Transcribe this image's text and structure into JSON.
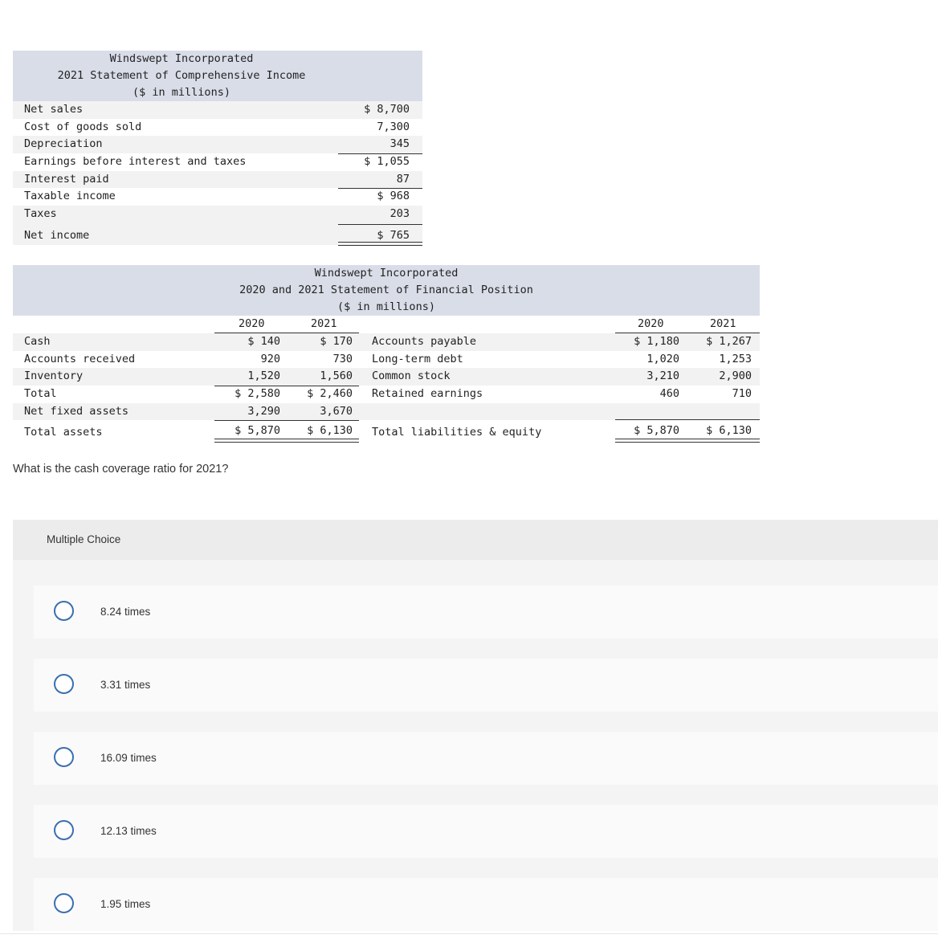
{
  "income": {
    "title1": "Windswept Incorporated",
    "title2": "2021 Statement of Comprehensive Income",
    "title3": "($ in millions)",
    "rows": [
      {
        "label": "Net sales",
        "value": "$ 8,700"
      },
      {
        "label": "Cost of goods sold",
        "value": "7,300"
      },
      {
        "label": "Depreciation",
        "value": "345"
      },
      {
        "label": "Earnings before interest and taxes",
        "value": "$ 1,055"
      },
      {
        "label": "Interest paid",
        "value": "87"
      },
      {
        "label": "Taxable income",
        "value": "$ 968"
      },
      {
        "label": "Taxes",
        "value": "203"
      },
      {
        "label": "Net income",
        "value": "$ 765"
      }
    ]
  },
  "balance": {
    "title1": "Windswept Incorporated",
    "title2": "2020 and 2021 Statement of Financial Position",
    "title3": "($ in millions)",
    "years": [
      "2020",
      "2021",
      "2020",
      "2021"
    ],
    "assets": [
      {
        "label": "Cash",
        "y2020": "$ 140",
        "y2021": "$ 170"
      },
      {
        "label": "Accounts received",
        "y2020": "920",
        "y2021": "730"
      },
      {
        "label": "Inventory",
        "y2020": "1,520",
        "y2021": "1,560"
      },
      {
        "label": "Total",
        "y2020": "$ 2,580",
        "y2021": "$ 2,460"
      },
      {
        "label": "Net fixed assets",
        "y2020": "3,290",
        "y2021": "3,670"
      },
      {
        "label": "Total assets",
        "y2020": "$ 5,870",
        "y2021": "$ 6,130"
      }
    ],
    "liabilities": [
      {
        "label": "Accounts payable",
        "y2020": "$ 1,180",
        "y2021": "$ 1,267"
      },
      {
        "label": "Long-term debt",
        "y2020": "1,020",
        "y2021": "1,253"
      },
      {
        "label": "Common stock",
        "y2020": "3,210",
        "y2021": "2,900"
      },
      {
        "label": "Retained earnings",
        "y2020": "460",
        "y2021": "710"
      },
      {
        "label": "",
        "y2020": "",
        "y2021": ""
      },
      {
        "label": "Total liabilities & equity",
        "y2020": "$ 5,870",
        "y2021": "$ 6,130"
      }
    ]
  },
  "question": "What is the cash coverage ratio for 2021?",
  "multiple_choice": {
    "header": "Multiple Choice",
    "options": [
      "8.24 times",
      "3.31 times",
      "16.09 times",
      "12.13 times",
      "1.95 times"
    ]
  }
}
